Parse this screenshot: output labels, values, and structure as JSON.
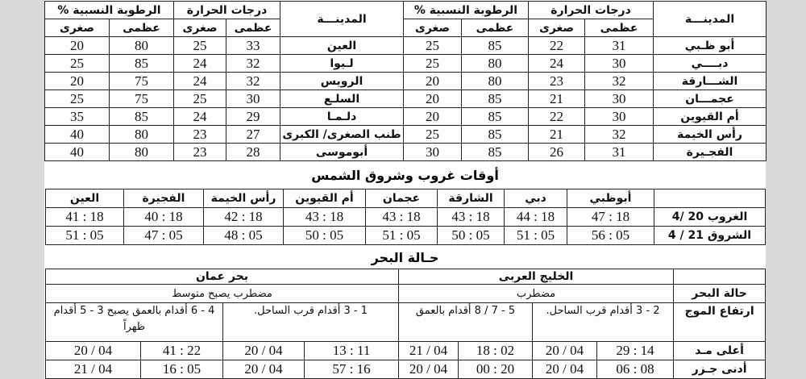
{
  "weather": {
    "headers": {
      "city": "المدينـــة",
      "temp": "درجات الحرارة",
      "humidity": "الرطوبة النسبية %",
      "max": "عظمى",
      "min": "صغرى"
    },
    "right": [
      {
        "city": "أبو ظـبي",
        "tmax": "31",
        "tmin": "22",
        "hmax": "85",
        "hmin": "25"
      },
      {
        "city": "دبــــي",
        "tmax": "30",
        "tmin": "24",
        "hmax": "80",
        "hmin": "25"
      },
      {
        "city": "الشـــارقة",
        "tmax": "32",
        "tmin": "23",
        "hmax": "80",
        "hmin": "20"
      },
      {
        "city": "عجمـــان",
        "tmax": "30",
        "tmin": "21",
        "hmax": "85",
        "hmin": "20"
      },
      {
        "city": "أم القيوين",
        "tmax": "30",
        "tmin": "22",
        "hmax": "85",
        "hmin": "20"
      },
      {
        "city": "رأس الخيمة",
        "tmax": "32",
        "tmin": "21",
        "hmax": "85",
        "hmin": "25"
      },
      {
        "city": "الفجـيرة",
        "tmax": "31",
        "tmin": "26",
        "hmax": "85",
        "hmin": "30"
      }
    ],
    "left": [
      {
        "city": "العين",
        "tmax": "33",
        "tmin": "25",
        "hmax": "80",
        "hmin": "20"
      },
      {
        "city": "لـيوا",
        "tmax": "32",
        "tmin": "24",
        "hmax": "85",
        "hmin": "25"
      },
      {
        "city": "الرويس",
        "tmax": "32",
        "tmin": "24",
        "hmax": "75",
        "hmin": "20"
      },
      {
        "city": "السلـع",
        "tmax": "30",
        "tmin": "25",
        "hmax": "75",
        "hmin": "25"
      },
      {
        "city": "دلـمـا",
        "tmax": "29",
        "tmin": "24",
        "hmax": "85",
        "hmin": "35"
      },
      {
        "city": "طنب الصغرى/ الكبرى",
        "tmax": "27",
        "tmin": "23",
        "hmax": "80",
        "hmin": "40"
      },
      {
        "city": "أبوموسى",
        "tmax": "28",
        "tmin": "23",
        "hmax": "80",
        "hmin": "40"
      }
    ]
  },
  "sun": {
    "title": "أوقات غروب وشروق الشمس",
    "cities": [
      "أبوظبي",
      "دبي",
      "الشارقة",
      "عجمان",
      "أم القيوين",
      "رأس الخيمة",
      "الفجيرة",
      "العين"
    ],
    "rows": [
      {
        "label": "الغروب 20 /4",
        "times": [
          "18 : 47",
          "18 : 44",
          "18 : 43",
          "18 : 43",
          "18 : 43",
          "18 : 42",
          "18 : 40",
          "18 : 41"
        ]
      },
      {
        "label": "الشروق 21 / 4",
        "times": [
          "05 : 56",
          "05 : 51",
          "05 : 50",
          "05 : 51",
          "05 : 50",
          "05 : 48",
          "05 : 47",
          "05 : 51"
        ]
      }
    ]
  },
  "sea": {
    "title": "حـالة البحر",
    "gulf": "الخليج العربى",
    "oman": "بحر عمان",
    "state_label": "حالة البحر",
    "gulf_state": "مضطرب",
    "oman_state": "مضطرب يصبح متوسط",
    "wave_label": "ارتفاع الموج",
    "waves": [
      "2 - 3 أقدام قرب الساحل.",
      "5 - 7 / 8 أقدام بالعمق",
      "1 - 3 أقدام قرب الساحل.",
      "4 - 6 أقدام بالعمق يصبح 3 - 5 أقدام ظهراً"
    ],
    "high_label": "أعلى مـد",
    "high": [
      "14 : 29",
      "04 / 20",
      "02 : 18",
      "04 / 21",
      "11 : 13",
      "04 / 20",
      "22 : 41",
      "04 / 20"
    ],
    "low_label": "أدنى جـزر",
    "low": [
      "08 : 06",
      "04 / 20",
      "20 : 00",
      "04 / 20",
      "16 : 57",
      "04 / 20",
      "05 : 16",
      "04 / 21"
    ]
  }
}
